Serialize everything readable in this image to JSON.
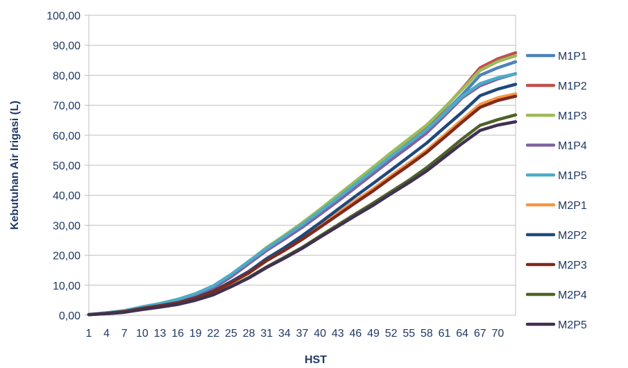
{
  "chart_data": {
    "type": "line",
    "title": "",
    "xlabel": "HST",
    "ylabel": "Kebutuhan Air Irigasi (L)",
    "ylim": [
      0,
      100
    ],
    "yticks": [
      "0,00",
      "10,00",
      "20,00",
      "30,00",
      "40,00",
      "50,00",
      "60,00",
      "70,00",
      "80,00",
      "90,00",
      "100,00"
    ],
    "xlim": [
      1,
      73
    ],
    "xticks": [
      "1",
      "4",
      "7",
      "10",
      "13",
      "16",
      "19",
      "22",
      "25",
      "28",
      "31",
      "34",
      "37",
      "40",
      "43",
      "46",
      "49",
      "52",
      "55",
      "58",
      "61",
      "64",
      "67",
      "70"
    ],
    "x": [
      1,
      4,
      7,
      10,
      13,
      16,
      19,
      22,
      25,
      28,
      31,
      34,
      37,
      40,
      43,
      46,
      49,
      52,
      55,
      58,
      61,
      64,
      67,
      70,
      73
    ],
    "grid": "horizontal",
    "legend_position": "right",
    "series": [
      {
        "name": "M1P1",
        "color": "#4f81bd",
        "values": [
          0.2,
          0.8,
          1.5,
          2.7,
          3.8,
          5.0,
          6.8,
          9.3,
          13.0,
          17.5,
          22.0,
          25.9,
          29.8,
          34.1,
          38.6,
          43.2,
          47.6,
          52.3,
          56.9,
          61.5,
          67.5,
          73.5,
          80.0,
          82.5,
          84.5
        ]
      },
      {
        "name": "M1P2",
        "color": "#c0504d",
        "values": [
          0.2,
          0.8,
          1.5,
          2.7,
          3.8,
          5.1,
          7.0,
          9.6,
          13.4,
          17.9,
          22.5,
          26.4,
          30.5,
          34.9,
          39.5,
          44.0,
          48.6,
          53.5,
          58.2,
          62.8,
          69.0,
          75.5,
          82.5,
          85.5,
          87.5
        ]
      },
      {
        "name": "M1P3",
        "color": "#9bbb59",
        "values": [
          0.2,
          0.8,
          1.5,
          2.7,
          3.8,
          5.1,
          7.0,
          9.6,
          13.4,
          17.9,
          22.6,
          26.6,
          30.8,
          35.3,
          40.0,
          44.7,
          49.4,
          54.2,
          58.8,
          63.4,
          69.2,
          75.3,
          81.6,
          84.6,
          86.5
        ]
      },
      {
        "name": "M1P4",
        "color": "#8064a2",
        "values": [
          0.2,
          0.7,
          1.4,
          2.6,
          3.6,
          4.9,
          6.6,
          9.1,
          12.8,
          17.2,
          21.6,
          25.4,
          29.3,
          33.6,
          38.0,
          42.6,
          47.2,
          51.8,
          56.2,
          60.8,
          66.5,
          72.5,
          76.5,
          78.8,
          80.5
        ]
      },
      {
        "name": "M1P5",
        "color": "#4bacc6",
        "values": [
          0.2,
          0.8,
          1.5,
          2.8,
          3.9,
          5.3,
          7.2,
          9.8,
          13.6,
          18.0,
          22.3,
          26.2,
          30.2,
          34.6,
          39.1,
          43.7,
          48.3,
          53.0,
          57.4,
          61.9,
          67.3,
          73.0,
          77.2,
          79.2,
          80.5
        ]
      },
      {
        "name": "M2P1",
        "color": "#f79646",
        "values": [
          0.2,
          0.6,
          1.2,
          2.3,
          3.2,
          4.2,
          5.8,
          7.9,
          11.0,
          14.4,
          18.6,
          22.0,
          25.8,
          29.9,
          34.0,
          38.2,
          42.2,
          46.5,
          50.7,
          55.0,
          60.1,
          65.2,
          70.3,
          72.5,
          73.8
        ]
      },
      {
        "name": "M2P2",
        "color": "#1f497d",
        "values": [
          0.2,
          0.6,
          1.2,
          2.3,
          3.2,
          4.2,
          5.8,
          8.0,
          11.2,
          14.6,
          18.9,
          22.5,
          26.5,
          30.8,
          35.3,
          39.7,
          44.0,
          48.4,
          52.9,
          57.4,
          62.6,
          67.7,
          73.2,
          75.4,
          77.0
        ]
      },
      {
        "name": "M2P3",
        "color": "#7f2a1e",
        "values": [
          0.2,
          0.6,
          1.2,
          2.2,
          3.1,
          4.1,
          5.6,
          7.8,
          10.8,
          14.1,
          18.2,
          21.6,
          25.3,
          29.3,
          33.4,
          37.5,
          41.5,
          45.8,
          50.0,
          54.3,
          59.3,
          64.4,
          69.3,
          71.6,
          73.0
        ]
      },
      {
        "name": "M2P4",
        "color": "#4f6228",
        "values": [
          0.2,
          0.5,
          1.0,
          1.9,
          2.7,
          3.6,
          5.0,
          6.8,
          9.6,
          12.6,
          16.1,
          19.3,
          22.6,
          26.4,
          30.1,
          33.8,
          37.4,
          41.2,
          45.0,
          49.2,
          53.9,
          58.8,
          63.3,
          65.2,
          66.8
        ]
      },
      {
        "name": "M2P5",
        "color": "#403151",
        "values": [
          0.2,
          0.5,
          1.0,
          1.9,
          2.7,
          3.6,
          5.0,
          6.8,
          9.5,
          12.4,
          15.9,
          19.0,
          22.3,
          26.0,
          29.6,
          33.2,
          36.7,
          40.5,
          44.2,
          48.1,
          52.7,
          57.3,
          61.6,
          63.4,
          64.5
        ]
      }
    ]
  }
}
